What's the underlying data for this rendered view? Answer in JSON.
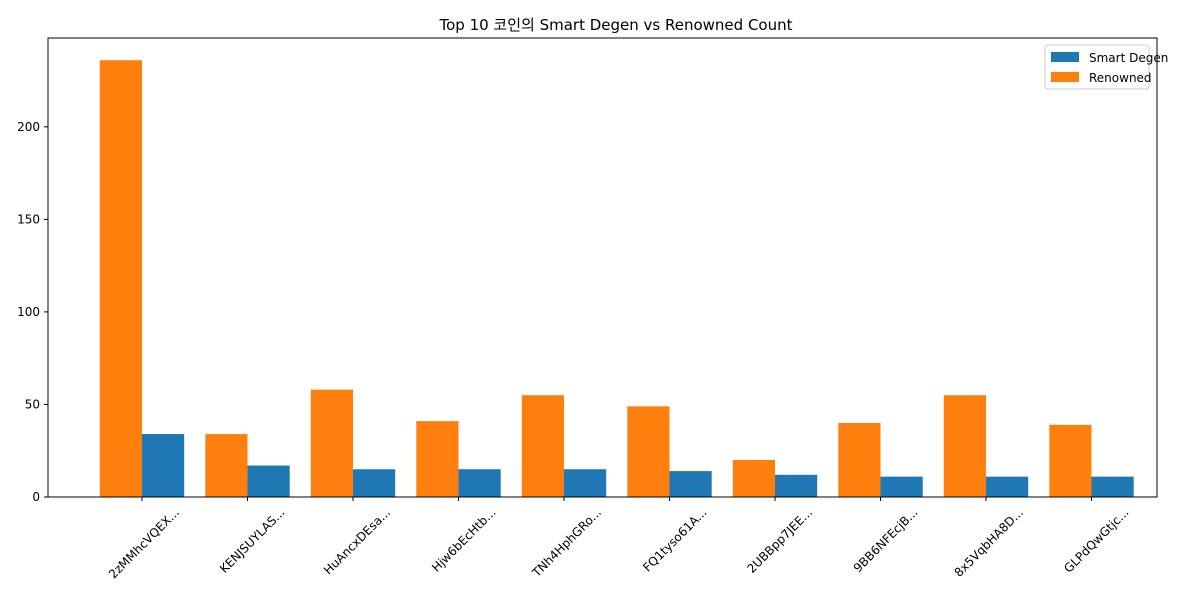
{
  "chart_data": {
    "type": "bar",
    "title": "Top 10 코인의 Smart Degen vs Renowned Count",
    "xlabel": "",
    "ylabel": "",
    "ylim": [
      0,
      248
    ],
    "yticks": [
      0,
      50,
      100,
      150,
      200
    ],
    "grid": false,
    "legend_position": "top-right",
    "categories": [
      "2zMMhcVQEX...",
      "KENJSUYLAS...",
      "HuAncxDEsa...",
      "Hjw6bEcHtb...",
      "TNh4HphGRo...",
      "FQ1tyso61A...",
      "2UBBpp7JEE...",
      "9BB6NFEcjB...",
      "8x5VqbHA8D...",
      "GLPdQwGtjc..."
    ],
    "series": [
      {
        "name": "Smart Degen",
        "color": "#1f77b4",
        "values": [
          34,
          17,
          15,
          15,
          15,
          14,
          12,
          11,
          11,
          11
        ]
      },
      {
        "name": "Renowned",
        "color": "#ff7f0e",
        "values": [
          236,
          34,
          58,
          41,
          55,
          49,
          20,
          40,
          55,
          39
        ]
      }
    ]
  }
}
